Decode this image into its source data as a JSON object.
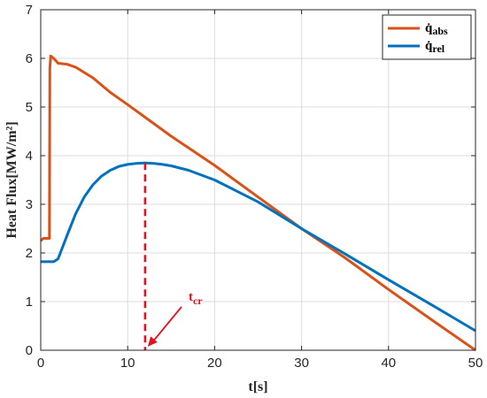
{
  "chart_data": {
    "type": "line",
    "xlabel": "t[s]",
    "ylabel": "Heat Flux[MW/m²]",
    "xlim": [
      0,
      50
    ],
    "ylim": [
      0,
      7
    ],
    "xticks": [
      0,
      10,
      20,
      30,
      40,
      50
    ],
    "yticks": [
      0,
      1,
      2,
      3,
      4,
      5,
      6,
      7
    ],
    "grid": true,
    "legend_position": "top-right",
    "series": [
      {
        "name": "q̇abs",
        "legend_main": "q̇",
        "legend_sub": "abs",
        "color": "#D95319",
        "x": [
          0,
          0.3,
          0.9,
          1.0,
          1.05,
          1.15,
          1.5,
          2,
          3,
          4,
          6,
          8,
          10,
          15,
          20,
          25,
          30,
          35,
          40,
          45,
          50
        ],
        "y": [
          2.25,
          2.3,
          2.3,
          2.3,
          5.8,
          6.05,
          6.0,
          5.9,
          5.88,
          5.82,
          5.6,
          5.3,
          5.05,
          4.4,
          3.8,
          3.15,
          2.5,
          1.9,
          1.25,
          0.62,
          0.0
        ]
      },
      {
        "name": "q̇rel",
        "legend_main": "q̇",
        "legend_sub": "rel",
        "color": "#0072BD",
        "x": [
          0,
          1,
          1.5,
          2,
          3,
          4,
          5,
          6,
          7,
          8,
          9,
          10,
          11,
          12,
          13,
          14,
          15,
          17,
          20,
          25,
          30,
          35,
          40,
          45,
          50
        ],
        "y": [
          1.82,
          1.82,
          1.82,
          1.88,
          2.35,
          2.8,
          3.15,
          3.4,
          3.58,
          3.7,
          3.78,
          3.82,
          3.84,
          3.85,
          3.84,
          3.82,
          3.79,
          3.7,
          3.5,
          3.05,
          2.5,
          1.98,
          1.45,
          0.93,
          0.4
        ]
      }
    ],
    "annotation": {
      "label_main": "t",
      "label_sub": "cr",
      "x": 12,
      "y": 3.85,
      "text_x": 17,
      "text_y": 1.0,
      "color": "#E8101A"
    }
  }
}
